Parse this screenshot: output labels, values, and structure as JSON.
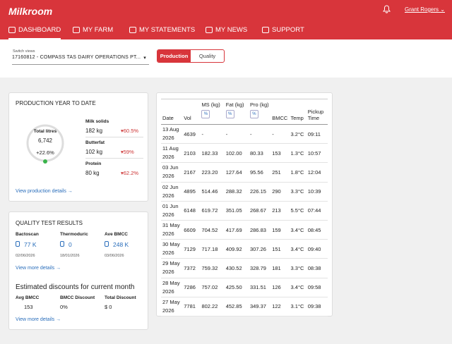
{
  "header": {
    "logo": "Milkroom",
    "user": "Grant Rogers"
  },
  "nav": [
    "DASHBOARD",
    "MY FARM",
    "MY STATEMENTS",
    "MY NEWS",
    "SUPPORT"
  ],
  "switcher": {
    "label": "Switch views",
    "selected": "17160812 - COMPASS TAS DAIRY OPERATIONS PT...",
    "tabs": [
      "Production",
      "Quality"
    ]
  },
  "production": {
    "title": "PRODUCTION YEAR TO DATE",
    "gauge": {
      "label": "Total litres",
      "value": "6,742",
      "change": "+22.6%"
    },
    "items": [
      {
        "label": "Milk solids",
        "value": "182 kg",
        "change": "▾60.5%"
      },
      {
        "label": "Butterfat",
        "value": "102 kg",
        "change": "▾59%"
      },
      {
        "label": "Protein",
        "value": "80 kg",
        "change": "▾62.2%"
      }
    ],
    "link": "View production details →"
  },
  "quality": {
    "title": "QUALITY TEST RESULTS",
    "tests": [
      {
        "label": "Bactoscan",
        "value": "77 K",
        "date": "02/06/2026"
      },
      {
        "label": "Thermoduric",
        "value": "0",
        "date": "18/01/2026"
      },
      {
        "label": "Ave BMCC",
        "value": "248 K",
        "date": "03/06/2026"
      }
    ],
    "link": "View more details →",
    "discount_title": "Estimated discounts for current month",
    "discounts": [
      {
        "label": "Avg BMCC",
        "value": "153"
      },
      {
        "label": "BMCC Discount",
        "value": "0%"
      },
      {
        "label": "Total Discount",
        "value": "$ 0"
      }
    ],
    "discount_link": "View more details →"
  },
  "table": {
    "columns": [
      {
        "label": "Date"
      },
      {
        "label": "Vol"
      },
      {
        "label": "MS (kg)",
        "toggle": "%"
      },
      {
        "label": "Fat (kg)",
        "toggle": "%"
      },
      {
        "label": "Pro (kg)",
        "toggle": "%"
      },
      {
        "label": "BMCC"
      },
      {
        "label": "Temp"
      },
      {
        "label": "Pickup Time"
      }
    ],
    "rows": [
      [
        "13 Aug 2026",
        "4639",
        "-",
        "-",
        "-",
        "-",
        "3.2°C",
        "09:11"
      ],
      [
        "11 Aug 2026",
        "2103",
        "182.33",
        "102.00",
        "80.33",
        "153",
        "1.3°C",
        "10:57"
      ],
      [
        "03 Jun 2026",
        "2167",
        "223.20",
        "127.64",
        "95.56",
        "251",
        "1.8°C",
        "12:04"
      ],
      [
        "02 Jun 2026",
        "4895",
        "514.46",
        "288.32",
        "226.15",
        "290",
        "3.3°C",
        "10:39"
      ],
      [
        "01 Jun 2026",
        "6148",
        "619.72",
        "351.05",
        "268.67",
        "213",
        "5.5°C",
        "07:44"
      ],
      [
        "31 May 2026",
        "6609",
        "704.52",
        "417.69",
        "286.83",
        "159",
        "3.4°C",
        "08:45"
      ],
      [
        "30 May 2026",
        "7129",
        "717.18",
        "409.92",
        "307.26",
        "151",
        "3.4°C",
        "09:40"
      ],
      [
        "29 May 2026",
        "7372",
        "759.32",
        "430.52",
        "328.79",
        "181",
        "3.3°C",
        "08:38"
      ],
      [
        "28 May 2026",
        "7286",
        "757.02",
        "425.50",
        "331.51",
        "126",
        "3.4°C",
        "09:58"
      ],
      [
        "27 May 2026",
        "7781",
        "802.22",
        "452.85",
        "349.37",
        "122",
        "3.1°C",
        "09:38"
      ]
    ]
  }
}
